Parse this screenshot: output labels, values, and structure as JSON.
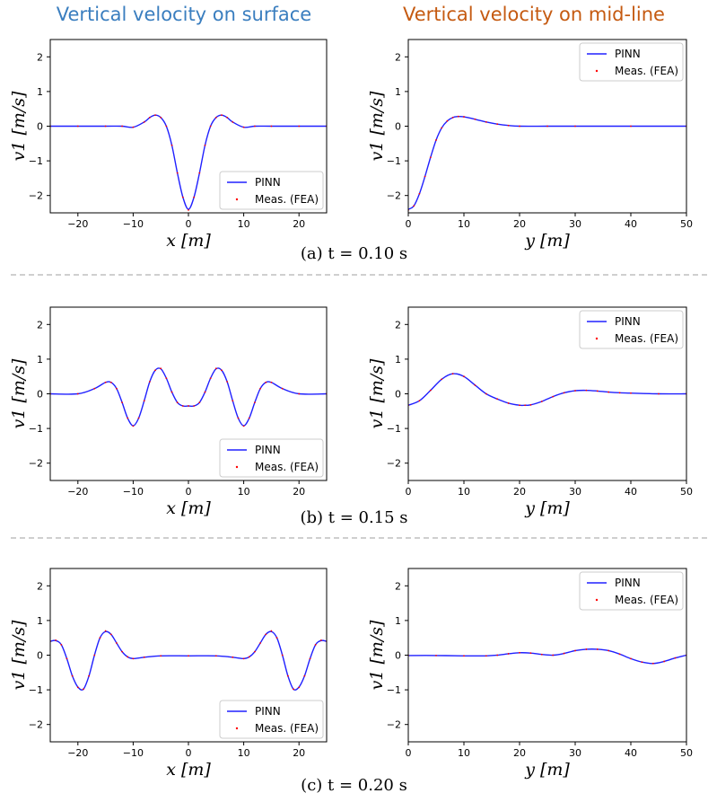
{
  "header": {
    "left_title": "Vertical velocity on surface",
    "right_title": "Vertical velocity on mid-line",
    "left_color": "#3a7ebf",
    "right_color": "#c55a11"
  },
  "captions": [
    "(a) t = 0.10 s",
    "(b) t = 0.15 s",
    "(c) t = 0.20 s"
  ],
  "colors": {
    "pinn": "#2020ff",
    "fea": "#ff0000"
  },
  "legend": {
    "pinn": "PINN",
    "fea": "Meas. (FEA)"
  },
  "chart_data": [
    {
      "id": "a-surface",
      "type": "line",
      "title": "Vertical velocity on surface",
      "xlabel": "x [m]",
      "ylabel": "v1 [m/s]",
      "xlim": [
        -25,
        25
      ],
      "ylim": [
        -2.5,
        2.5
      ],
      "xticks": [
        -20,
        -10,
        0,
        10,
        20
      ],
      "xtick_labels": [
        "−20",
        "−10",
        "0",
        "10",
        "20"
      ],
      "yticks": [
        -2,
        -1,
        0,
        1,
        2
      ],
      "ytick_labels": [
        "−2",
        "−1",
        "0",
        "1",
        "2"
      ],
      "legend_position": "lower-right",
      "series": [
        {
          "name": "PINN",
          "style": "line",
          "x": [
            -25,
            -20,
            -15,
            -12,
            -10,
            -8,
            -7,
            -6,
            -5,
            -4,
            -3,
            -2,
            -1,
            0,
            1,
            2,
            3,
            4,
            5,
            6,
            7,
            8,
            10,
            12,
            15,
            20,
            25
          ],
          "y": [
            0,
            0,
            0,
            0,
            -0.03,
            0.12,
            0.25,
            0.32,
            0.25,
            0.0,
            -0.55,
            -1.35,
            -2.05,
            -2.4,
            -2.05,
            -1.35,
            -0.55,
            0.0,
            0.25,
            0.32,
            0.25,
            0.12,
            -0.03,
            0,
            0,
            0,
            0
          ]
        },
        {
          "name": "Meas. (FEA)",
          "style": "dots",
          "x": [
            -25,
            -20,
            -15,
            -12,
            -10,
            -8,
            -7,
            -6,
            -5,
            -4,
            -3,
            -2,
            -1,
            0,
            1,
            2,
            3,
            4,
            5,
            6,
            7,
            8,
            10,
            12,
            15,
            20,
            25
          ],
          "y": [
            0,
            0,
            0,
            0,
            -0.03,
            0.12,
            0.25,
            0.32,
            0.25,
            0.0,
            -0.55,
            -1.35,
            -2.05,
            -2.42,
            -2.05,
            -1.35,
            -0.55,
            0.0,
            0.25,
            0.32,
            0.25,
            0.12,
            -0.03,
            0,
            0,
            0,
            0
          ]
        }
      ]
    },
    {
      "id": "a-midline",
      "type": "line",
      "title": "Vertical velocity on mid-line",
      "xlabel": "y [m]",
      "ylabel": "v1 [m/s]",
      "xlim": [
        0,
        50
      ],
      "ylim": [
        -2.5,
        2.5
      ],
      "xticks": [
        0,
        10,
        20,
        30,
        40,
        50
      ],
      "xtick_labels": [
        "0",
        "10",
        "20",
        "30",
        "40",
        "50"
      ],
      "yticks": [
        -2,
        -1,
        0,
        1,
        2
      ],
      "ytick_labels": [
        "−2",
        "−1",
        "0",
        "1",
        "2"
      ],
      "legend_position": "top-right",
      "series": [
        {
          "name": "PINN",
          "style": "line",
          "x": [
            0,
            1,
            2,
            3,
            4,
            5,
            6,
            7,
            8,
            9,
            10,
            12,
            14,
            16,
            18,
            20,
            25,
            30,
            40,
            50
          ],
          "y": [
            -2.4,
            -2.3,
            -1.95,
            -1.45,
            -0.9,
            -0.4,
            -0.05,
            0.15,
            0.25,
            0.28,
            0.27,
            0.2,
            0.12,
            0.06,
            0.02,
            0.0,
            0,
            0,
            0,
            0
          ]
        },
        {
          "name": "Meas. (FEA)",
          "style": "dots",
          "x": [
            0,
            1,
            2,
            3,
            4,
            5,
            6,
            7,
            8,
            9,
            10,
            12,
            14,
            16,
            18,
            20,
            25,
            30,
            40,
            50
          ],
          "y": [
            -2.42,
            -2.3,
            -1.95,
            -1.45,
            -0.9,
            -0.4,
            -0.05,
            0.15,
            0.25,
            0.28,
            0.27,
            0.2,
            0.12,
            0.06,
            0.02,
            0.0,
            0,
            0,
            0,
            0
          ]
        }
      ]
    },
    {
      "id": "b-surface",
      "type": "line",
      "title": "Vertical velocity on surface",
      "xlabel": "x [m]",
      "ylabel": "v1 [m/s]",
      "xlim": [
        -25,
        25
      ],
      "ylim": [
        -2.5,
        2.5
      ],
      "xticks": [
        -20,
        -10,
        0,
        10,
        20
      ],
      "xtick_labels": [
        "−20",
        "−10",
        "0",
        "10",
        "20"
      ],
      "yticks": [
        -2,
        -1,
        0,
        1,
        2
      ],
      "ytick_labels": [
        "−2",
        "−1",
        "0",
        "1",
        "2"
      ],
      "legend_position": "lower-right",
      "series": [
        {
          "name": "PINN",
          "style": "line",
          "x": [
            -25,
            -20,
            -17,
            -15,
            -14,
            -13,
            -12,
            -11,
            -10,
            -9,
            -8,
            -7,
            -6,
            -5,
            -4,
            -3,
            -2,
            -1,
            0,
            1,
            2,
            3,
            4,
            5,
            6,
            7,
            8,
            9,
            10,
            11,
            12,
            13,
            14,
            15,
            17,
            20,
            25
          ],
          "y": [
            0,
            0,
            0.15,
            0.33,
            0.33,
            0.15,
            -0.25,
            -0.7,
            -0.92,
            -0.7,
            -0.2,
            0.35,
            0.68,
            0.72,
            0.45,
            0.05,
            -0.25,
            -0.35,
            -0.35,
            -0.35,
            -0.25,
            0.05,
            0.45,
            0.72,
            0.68,
            0.35,
            -0.2,
            -0.7,
            -0.92,
            -0.7,
            -0.25,
            0.15,
            0.33,
            0.33,
            0.15,
            0,
            0
          ]
        },
        {
          "name": "Meas. (FEA)",
          "style": "dots",
          "x": [
            -25,
            -20,
            -17,
            -15,
            -14,
            -13,
            -12,
            -11,
            -10,
            -9,
            -8,
            -7,
            -6,
            -5,
            -4,
            -3,
            -2,
            -1,
            0,
            1,
            2,
            3,
            4,
            5,
            6,
            7,
            8,
            9,
            10,
            11,
            12,
            13,
            14,
            15,
            17,
            20,
            25
          ],
          "y": [
            0,
            0,
            0.15,
            0.33,
            0.33,
            0.15,
            -0.25,
            -0.7,
            -0.93,
            -0.7,
            -0.2,
            0.35,
            0.68,
            0.73,
            0.45,
            0.05,
            -0.25,
            -0.35,
            -0.35,
            -0.35,
            -0.25,
            0.05,
            0.45,
            0.73,
            0.68,
            0.35,
            -0.2,
            -0.7,
            -0.93,
            -0.7,
            -0.25,
            0.15,
            0.33,
            0.33,
            0.15,
            0,
            0
          ]
        }
      ]
    },
    {
      "id": "b-midline",
      "type": "line",
      "title": "Vertical velocity on mid-line",
      "xlabel": "y [m]",
      "ylabel": "v1 [m/s]",
      "xlim": [
        0,
        50
      ],
      "ylim": [
        -2.5,
        2.5
      ],
      "xticks": [
        0,
        10,
        20,
        30,
        40,
        50
      ],
      "xtick_labels": [
        "0",
        "10",
        "20",
        "30",
        "40",
        "50"
      ],
      "yticks": [
        -2,
        -1,
        0,
        1,
        2
      ],
      "ytick_labels": [
        "−2",
        "−1",
        "0",
        "1",
        "2"
      ],
      "legend_position": "top-right",
      "series": [
        {
          "name": "PINN",
          "style": "line",
          "x": [
            0,
            2,
            4,
            6,
            8,
            10,
            12,
            14,
            16,
            18,
            20,
            21,
            22,
            24,
            26,
            28,
            30,
            32,
            34,
            36,
            38,
            40,
            45,
            50
          ],
          "y": [
            -0.33,
            -0.2,
            0.1,
            0.42,
            0.58,
            0.5,
            0.25,
            0.0,
            -0.15,
            -0.27,
            -0.33,
            -0.33,
            -0.32,
            -0.22,
            -0.08,
            0.03,
            0.09,
            0.1,
            0.08,
            0.05,
            0.03,
            0.02,
            0.0,
            0.0
          ]
        },
        {
          "name": "Meas. (FEA)",
          "style": "dots",
          "x": [
            0,
            2,
            4,
            6,
            8,
            10,
            12,
            14,
            16,
            18,
            20,
            21,
            22,
            24,
            26,
            28,
            30,
            32,
            34,
            36,
            38,
            40,
            45,
            50
          ],
          "y": [
            -0.33,
            -0.2,
            0.1,
            0.42,
            0.58,
            0.5,
            0.25,
            0.0,
            -0.15,
            -0.27,
            -0.33,
            -0.33,
            -0.32,
            -0.22,
            -0.08,
            0.03,
            0.09,
            0.1,
            0.08,
            0.05,
            0.03,
            0.02,
            0.0,
            0.0
          ]
        }
      ]
    },
    {
      "id": "c-surface",
      "type": "line",
      "title": "Vertical velocity on surface",
      "xlabel": "x [m]",
      "ylabel": "v1 [m/s]",
      "xlim": [
        -25,
        25
      ],
      "ylim": [
        -2.5,
        2.5
      ],
      "xticks": [
        -20,
        -10,
        0,
        10,
        20
      ],
      "xtick_labels": [
        "−20",
        "−10",
        "0",
        "10",
        "20"
      ],
      "yticks": [
        -2,
        -1,
        0,
        1,
        2
      ],
      "ytick_labels": [
        "−2",
        "−1",
        "0",
        "1",
        "2"
      ],
      "legend_position": "lower-right",
      "series": [
        {
          "name": "PINN",
          "style": "line",
          "x": [
            -25,
            -24,
            -23,
            -22,
            -21,
            -20,
            -19,
            -18,
            -17,
            -16,
            -15,
            -14,
            -13,
            -12,
            -11,
            -10,
            -8,
            -5,
            0,
            5,
            8,
            10,
            11,
            12,
            13,
            14,
            15,
            16,
            17,
            18,
            19,
            20,
            21,
            22,
            23,
            24,
            25
          ],
          "y": [
            0.4,
            0.42,
            0.3,
            -0.1,
            -0.6,
            -0.92,
            -0.98,
            -0.6,
            0.0,
            0.5,
            0.68,
            0.6,
            0.35,
            0.1,
            -0.05,
            -0.1,
            -0.06,
            -0.02,
            -0.02,
            -0.02,
            -0.06,
            -0.1,
            -0.05,
            0.1,
            0.35,
            0.6,
            0.68,
            0.5,
            0.0,
            -0.6,
            -0.98,
            -0.92,
            -0.6,
            -0.1,
            0.3,
            0.42,
            0.4
          ]
        },
        {
          "name": "Meas. (FEA)",
          "style": "dots",
          "x": [
            -25,
            -24,
            -23,
            -22,
            -21,
            -20,
            -19,
            -18,
            -17,
            -16,
            -15,
            -14,
            -13,
            -12,
            -11,
            -10,
            -8,
            -5,
            0,
            5,
            8,
            10,
            11,
            12,
            13,
            14,
            15,
            16,
            17,
            18,
            19,
            20,
            21,
            22,
            23,
            24,
            25
          ],
          "y": [
            0.4,
            0.43,
            0.3,
            -0.1,
            -0.6,
            -0.93,
            -0.98,
            -0.6,
            0.0,
            0.5,
            0.7,
            0.6,
            0.35,
            0.1,
            -0.05,
            -0.1,
            -0.06,
            -0.02,
            -0.02,
            -0.02,
            -0.06,
            -0.1,
            -0.05,
            0.1,
            0.35,
            0.6,
            0.7,
            0.5,
            0.0,
            -0.6,
            -0.98,
            -0.93,
            -0.6,
            -0.1,
            0.3,
            0.43,
            0.4
          ]
        }
      ]
    },
    {
      "id": "c-midline",
      "type": "line",
      "title": "Vertical velocity on mid-line",
      "xlabel": "y [m]",
      "ylabel": "v1 [m/s]",
      "xlim": [
        0,
        50
      ],
      "ylim": [
        -2.5,
        2.5
      ],
      "xticks": [
        0,
        10,
        20,
        30,
        40,
        50
      ],
      "xtick_labels": [
        "0",
        "10",
        "20",
        "30",
        "40",
        "50"
      ],
      "yticks": [
        -2,
        -1,
        0,
        1,
        2
      ],
      "ytick_labels": [
        "−2",
        "−1",
        "0",
        "1",
        "2"
      ],
      "legend_position": "top-right",
      "series": [
        {
          "name": "PINN",
          "style": "line",
          "x": [
            0,
            5,
            10,
            14,
            16,
            18,
            20,
            22,
            24,
            26,
            28,
            30,
            32,
            34,
            36,
            38,
            40,
            42,
            44,
            46,
            48,
            50
          ],
          "y": [
            -0.01,
            -0.01,
            -0.02,
            -0.02,
            0.0,
            0.04,
            0.07,
            0.06,
            0.02,
            0.0,
            0.05,
            0.13,
            0.17,
            0.17,
            0.13,
            0.03,
            -0.1,
            -0.2,
            -0.24,
            -0.18,
            -0.08,
            0.0
          ]
        },
        {
          "name": "Meas. (FEA)",
          "style": "dots",
          "x": [
            0,
            5,
            10,
            14,
            16,
            18,
            20,
            22,
            24,
            26,
            28,
            30,
            32,
            34,
            36,
            38,
            40,
            42,
            44,
            46,
            48,
            50
          ],
          "y": [
            -0.01,
            -0.01,
            -0.02,
            -0.02,
            0.0,
            0.04,
            0.07,
            0.06,
            0.02,
            0.0,
            0.05,
            0.13,
            0.17,
            0.17,
            0.13,
            0.03,
            -0.1,
            -0.2,
            -0.24,
            -0.18,
            -0.08,
            0.0
          ]
        }
      ]
    }
  ]
}
